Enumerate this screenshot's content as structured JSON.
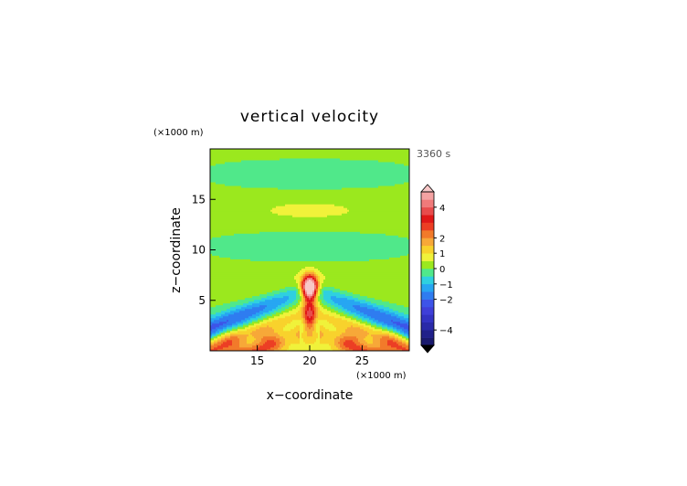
{
  "chart_data": {
    "type": "heatmap",
    "title": "vertical velocity",
    "time_label": "3360 s",
    "xlabel": "x−coordinate",
    "ylabel": "z−coordinate",
    "x_unit_label": "(×1000 m)",
    "y_unit_label": "(×1000 m)",
    "xlim": [
      10.5,
      29.5
    ],
    "ylim": [
      0,
      20
    ],
    "x_ticks": [
      15,
      20,
      25
    ],
    "y_ticks": [
      5,
      10,
      15
    ],
    "x_tick_labels": [
      "15",
      "20",
      "25"
    ],
    "y_tick_labels": [
      "5",
      "10",
      "15"
    ],
    "colorbar": {
      "levels": [
        -5,
        -4.5,
        -4,
        -3.5,
        -3,
        -2.5,
        -2,
        -1.5,
        -1,
        -0.5,
        0,
        0.5,
        1,
        1.5,
        2,
        2.5,
        3,
        3.5,
        4,
        4.5,
        5
      ],
      "colors": [
        "#1a1a6e",
        "#20208a",
        "#2a2aa8",
        "#3333c2",
        "#3f3fd8",
        "#3d54e8",
        "#2f7cf0",
        "#27a6f2",
        "#2fd0e0",
        "#50e88a",
        "#9be81e",
        "#f0f23a",
        "#f8d22c",
        "#f7a838",
        "#f27a2a",
        "#ec3e24",
        "#e01818",
        "#e84c4c",
        "#f07a7a",
        "#f4a2a2"
      ],
      "tick_values": [
        4,
        2,
        1,
        0,
        -1,
        -2,
        -4
      ],
      "tick_labels": [
        "4",
        "2",
        "1",
        "0",
        "−1",
        "−2",
        "−4"
      ],
      "max_extension_color": "#f8c8c8",
      "min_extension_color": "#000000"
    }
  }
}
